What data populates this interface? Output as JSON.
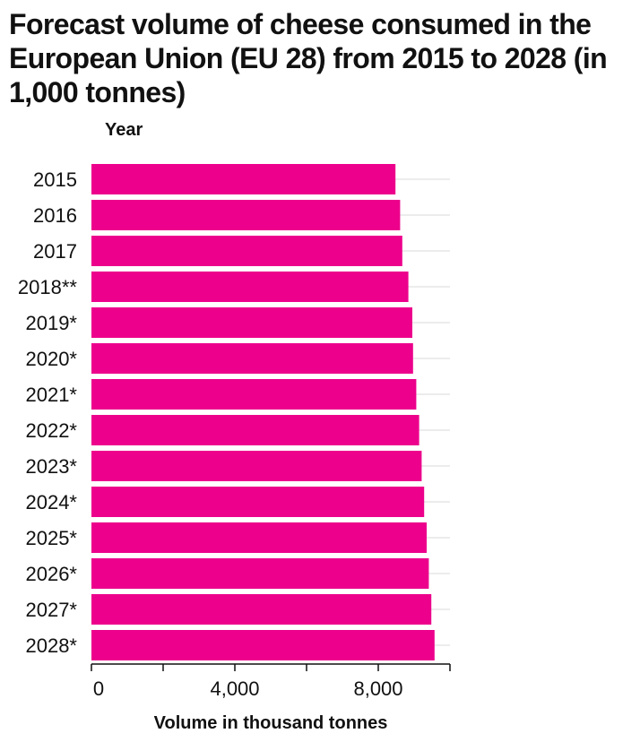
{
  "chart_data": {
    "type": "bar",
    "orientation": "horizontal",
    "title": "Forecast volume of cheese consumed in the European Union (EU 28) from 2015 to 2028 (in 1,000 tonnes)",
    "ylabel": "Year",
    "xlabel": "Volume in thousand tonnes",
    "categories": [
      "2015",
      "2016",
      "2017",
      "2018**",
      "2019*",
      "2020*",
      "2021*",
      "2022*",
      "2023*",
      "2024*",
      "2025*",
      "2026*",
      "2027*",
      "2028*"
    ],
    "values": [
      8480,
      8610,
      8670,
      8840,
      8950,
      8970,
      9060,
      9140,
      9210,
      9280,
      9350,
      9410,
      9480,
      9570
    ],
    "xlim": [
      0,
      10000
    ],
    "xticks": [
      0,
      2000,
      4000,
      6000,
      8000,
      10000
    ],
    "xtick_labels": [
      "0",
      "",
      "4,000",
      "",
      "8,000",
      ""
    ],
    "grid": true,
    "bar_color": "#ec008c",
    "grid_color": "#d9d9d9"
  }
}
